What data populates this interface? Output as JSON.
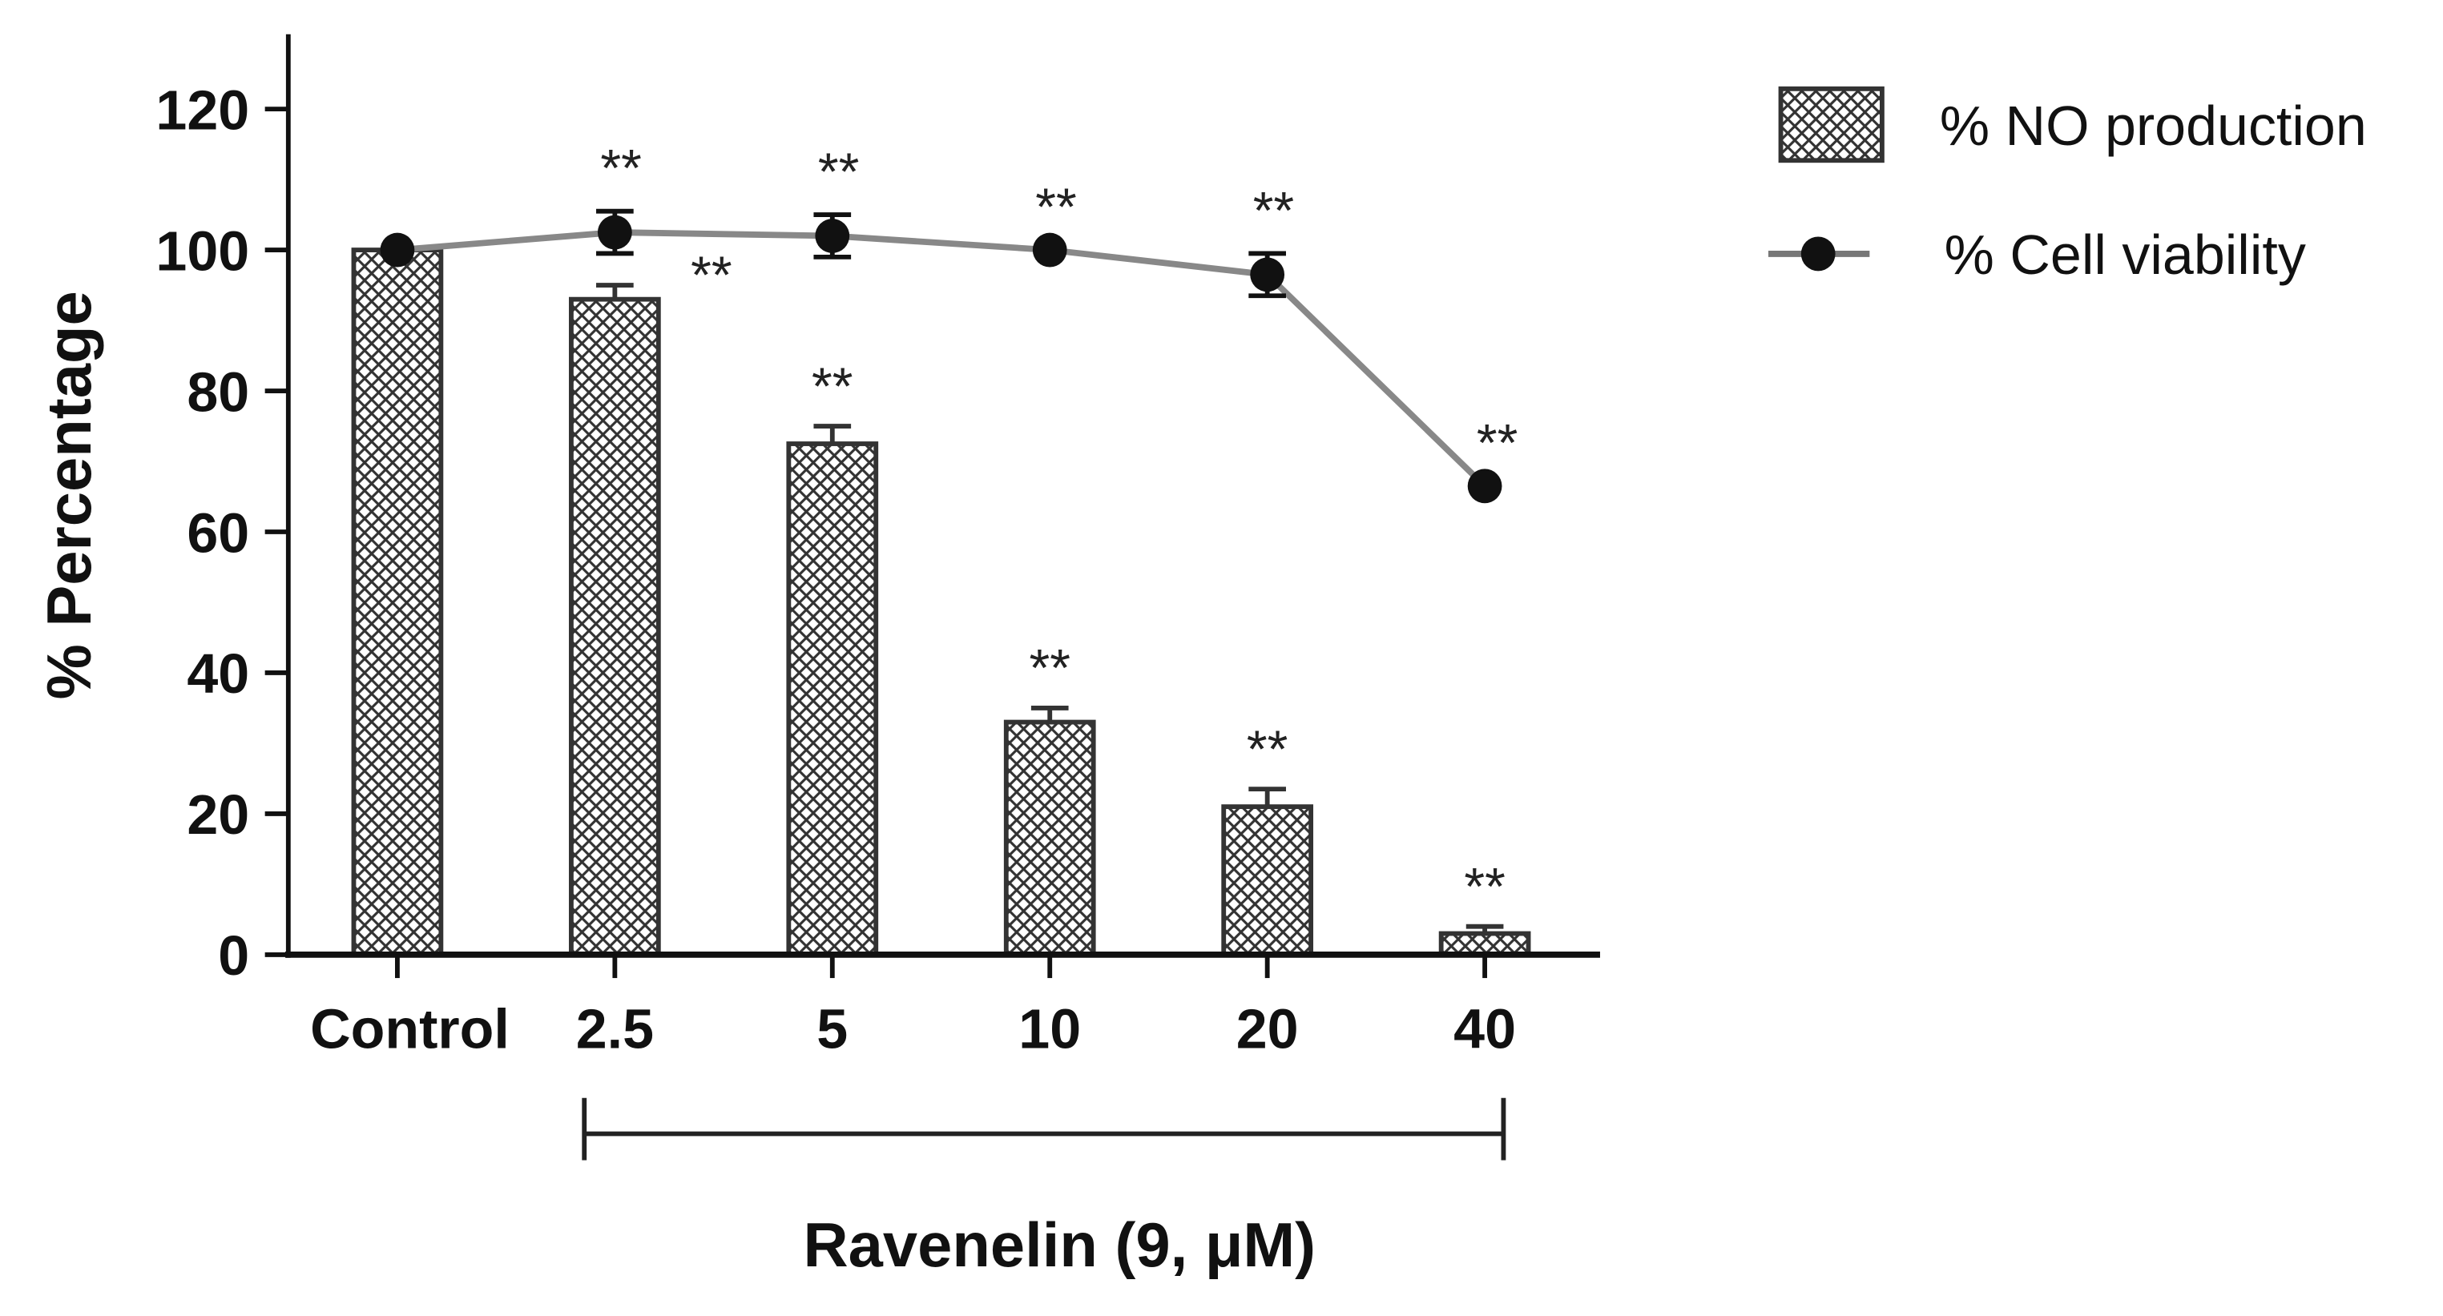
{
  "chart_data": {
    "type": "bar",
    "title": "",
    "xlabel": "Ravenelin (9, μM)",
    "ylabel": "% Percentage",
    "ylim": [
      0,
      120
    ],
    "yticks": [
      "0",
      "20",
      "40",
      "60",
      "80",
      "100",
      "120"
    ],
    "categories": [
      "Control",
      "2.5",
      "5",
      "10",
      "20",
      "40"
    ],
    "series": [
      {
        "name": "% NO production",
        "kind": "bar",
        "values": [
          100,
          93,
          72.5,
          33,
          21,
          3
        ],
        "errors": [
          0,
          2,
          2.5,
          2,
          2.5,
          1
        ],
        "significance": [
          "",
          "**",
          "**",
          "**",
          "**",
          "**"
        ]
      },
      {
        "name": "% Cell viability",
        "kind": "line",
        "values": [
          100,
          102.5,
          102,
          100,
          96.5,
          66.5
        ],
        "errors": [
          0,
          3,
          3,
          0,
          3,
          0
        ],
        "significance": [
          "",
          "**",
          "**",
          "**",
          "**",
          "**"
        ]
      }
    ],
    "legend_position": "top-right",
    "grid": false
  }
}
